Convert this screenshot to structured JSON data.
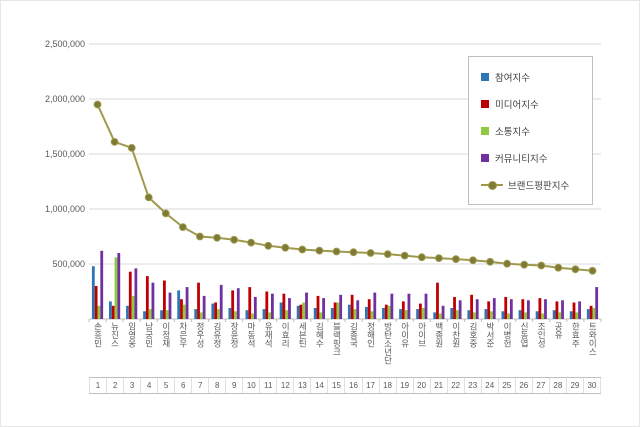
{
  "chart_data": {
    "type": "bar",
    "title": "",
    "xlabel": "",
    "ylabel": "",
    "ylim": [
      0,
      2500000
    ],
    "ytick_step": 500000,
    "ytick_labels": [
      "500,000",
      "1,000,000",
      "1,500,000",
      "2,000,000",
      "2,500,000"
    ],
    "grid": true,
    "legend_position": "top-right",
    "categories": [
      "손흥민",
      "뉴진스",
      "임영웅",
      "남궁민",
      "이정재",
      "차은우",
      "정우성",
      "김유정",
      "장윤정",
      "마동석",
      "유재석",
      "이효리",
      "세븐틴",
      "김혜수",
      "블랙핑크",
      "김종국",
      "정해인",
      "방탄소년단",
      "아이유",
      "아이브",
      "백종원",
      "이찬원",
      "김호중",
      "박서준",
      "이병헌",
      "신동엽",
      "조인성",
      "공유",
      "한효주",
      "트와이스"
    ],
    "ranks": [
      1,
      2,
      3,
      4,
      5,
      6,
      7,
      8,
      9,
      10,
      11,
      12,
      13,
      14,
      15,
      16,
      17,
      18,
      19,
      20,
      21,
      22,
      23,
      24,
      25,
      26,
      27,
      28,
      29,
      30
    ],
    "bar_series": [
      {
        "name": "참여지수",
        "color": "#2e75b6",
        "values": [
          480000,
          160000,
          120000,
          70000,
          80000,
          260000,
          90000,
          140000,
          100000,
          80000,
          90000,
          150000,
          120000,
          100000,
          100000,
          130000,
          110000,
          100000,
          90000,
          90000,
          60000,
          100000,
          80000,
          90000,
          70000,
          80000,
          70000,
          80000,
          70000,
          90000
        ]
      },
      {
        "name": "미디어지수",
        "color": "#c00000",
        "values": [
          300000,
          120000,
          430000,
          390000,
          350000,
          180000,
          330000,
          150000,
          260000,
          290000,
          250000,
          230000,
          130000,
          210000,
          150000,
          220000,
          180000,
          130000,
          160000,
          140000,
          330000,
          200000,
          220000,
          160000,
          200000,
          180000,
          190000,
          160000,
          150000,
          120000
        ]
      },
      {
        "name": "소통지수",
        "color": "#92c83e",
        "values": [
          120000,
          560000,
          210000,
          90000,
          80000,
          130000,
          60000,
          90000,
          70000,
          50000,
          60000,
          80000,
          150000,
          60000,
          150000,
          90000,
          70000,
          120000,
          80000,
          100000,
          50000,
          80000,
          60000,
          70000,
          50000,
          60000,
          50000,
          60000,
          60000,
          100000
        ]
      },
      {
        "name": "커뮤니티지수",
        "color": "#7030a0",
        "values": [
          620000,
          600000,
          460000,
          330000,
          240000,
          290000,
          210000,
          310000,
          280000,
          200000,
          230000,
          190000,
          240000,
          190000,
          220000,
          170000,
          240000,
          230000,
          230000,
          230000,
          120000,
          170000,
          180000,
          190000,
          180000,
          170000,
          180000,
          170000,
          160000,
          290000
        ]
      }
    ],
    "line_series": {
      "name": "브랜드평판지수",
      "color": "#9e9a4c",
      "marker_color": "#7f7a36",
      "values": [
        1950000,
        1610000,
        1555000,
        1105000,
        960000,
        835000,
        750000,
        738000,
        720000,
        695000,
        665000,
        648000,
        632000,
        622000,
        614000,
        607000,
        600000,
        590000,
        576000,
        562000,
        554000,
        545000,
        534000,
        520000,
        503000,
        494000,
        486000,
        466000,
        452000,
        438000
      ]
    }
  },
  "colors": {
    "grid": "#d9d9d9",
    "axis": "#bfbfbf",
    "text": "#595959"
  }
}
